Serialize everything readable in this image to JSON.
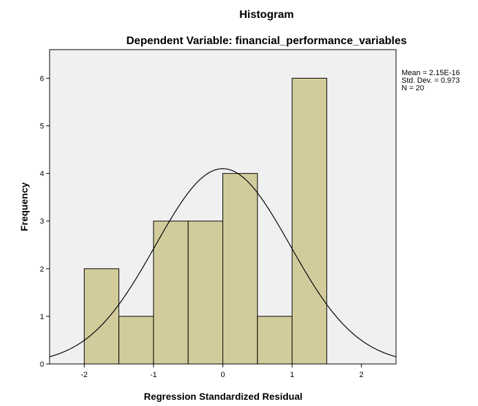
{
  "chart_data": {
    "type": "bar",
    "title": "Histogram",
    "subtitle": "Dependent Variable: financial_performance_variables",
    "xlabel": "Regression Standardized Residual",
    "ylabel": "Frequency",
    "bins": [
      {
        "start": -2.0,
        "end": -1.5,
        "count": 2
      },
      {
        "start": -1.5,
        "end": -1.0,
        "count": 1
      },
      {
        "start": -1.0,
        "end": -0.5,
        "count": 3
      },
      {
        "start": -0.5,
        "end": 0.0,
        "count": 3
      },
      {
        "start": 0.0,
        "end": 0.5,
        "count": 4
      },
      {
        "start": 0.5,
        "end": 1.0,
        "count": 1
      },
      {
        "start": 1.0,
        "end": 1.5,
        "count": 6
      }
    ],
    "xlim": [
      -2.5,
      2.5
    ],
    "ylim": [
      0,
      6.6
    ],
    "x_ticks": [
      -2,
      -1,
      0,
      1,
      2
    ],
    "y_ticks": [
      0,
      1,
      2,
      3,
      4,
      5,
      6
    ],
    "normal_curve": {
      "mean": 0,
      "std": 0.973,
      "n": 20,
      "bin_width": 0.5
    },
    "stats": {
      "mean": "Mean = 2.15E-16",
      "std": "Std. Dev. = 0.973",
      "n": "N = 20"
    },
    "grid": false,
    "legend_placement": "right",
    "colors": {
      "bar_fill": "#d2cc9c",
      "bar_stroke": "#000000",
      "plot_background": "#f0f0f0",
      "curve": "#000000"
    }
  }
}
